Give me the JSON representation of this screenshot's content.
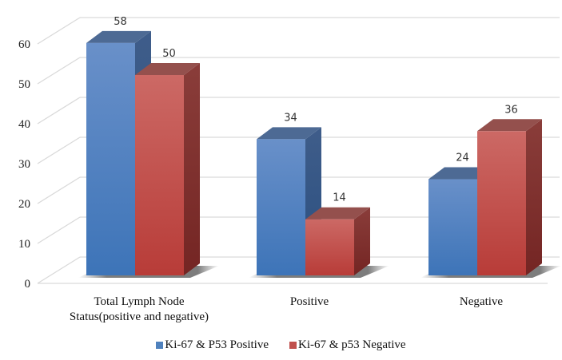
{
  "chart_data": {
    "type": "bar",
    "style": "3d-clustered-column",
    "title": "",
    "xlabel": "",
    "ylabel": "",
    "categories": [
      [
        "Total Lymph Node",
        "Status(positive and negative)"
      ],
      [
        "Positive"
      ],
      [
        "Negative"
      ]
    ],
    "series": [
      {
        "name": "Ki-67 & P53 Positive",
        "values": [
          58,
          34,
          24
        ],
        "color": "#4F81BD"
      },
      {
        "name": "Ki-67 & p53 Negative",
        "values": [
          50,
          14,
          36
        ],
        "color": "#C0504D"
      }
    ],
    "ylim": [
      0,
      60
    ],
    "yticks": [
      0,
      10,
      20,
      30,
      40,
      50,
      60
    ],
    "grid": true,
    "data_labels": true,
    "legend_position": "bottom"
  }
}
